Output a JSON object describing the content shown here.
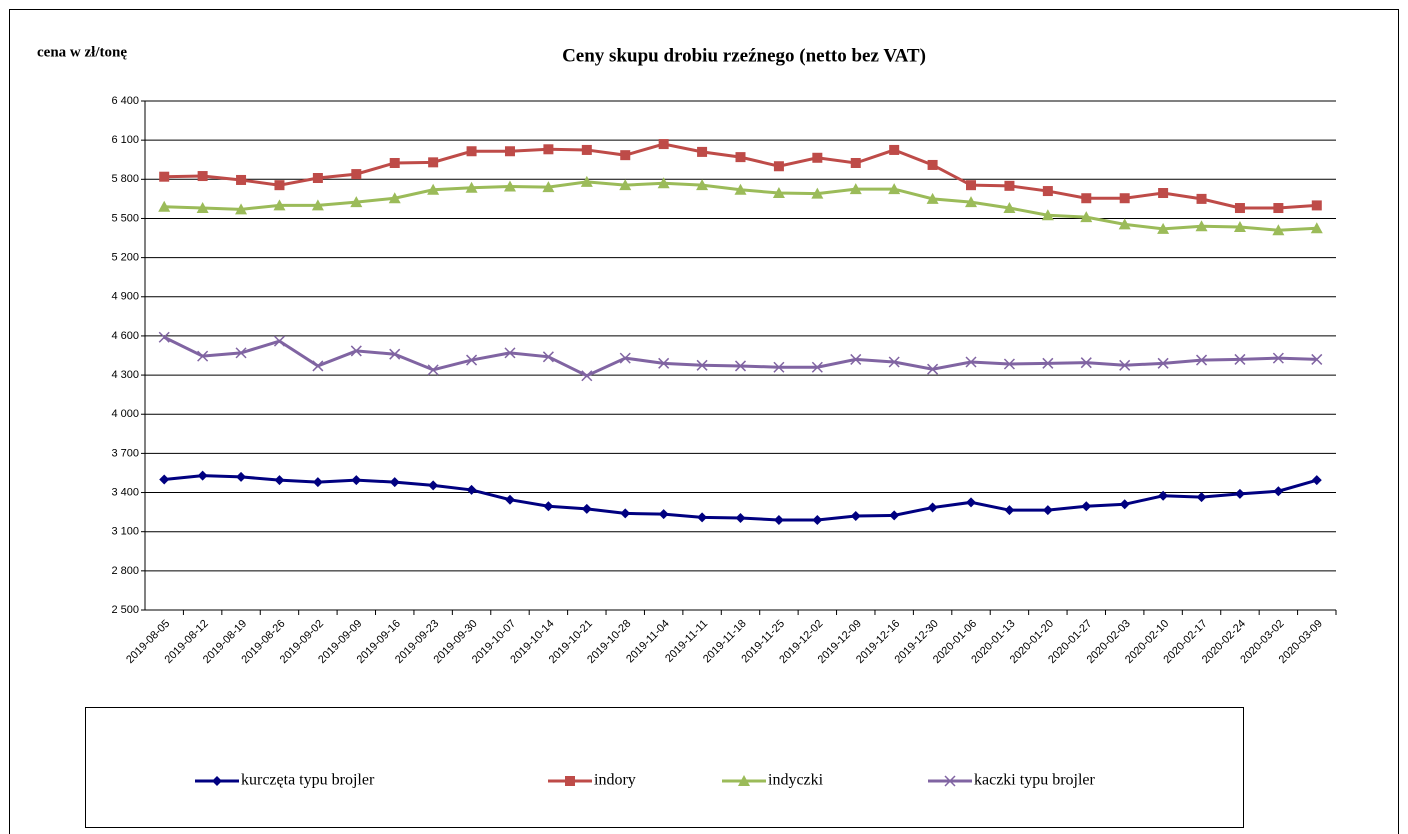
{
  "chart_data": {
    "type": "line",
    "title": "Ceny skupu drobiu rzeźnego (netto bez VAT)",
    "y_label": "cena w zł/tonę",
    "categories": [
      "2019-08-05",
      "2019-08-12",
      "2019-08-19",
      "2019-08-26",
      "2019-09-02",
      "2019-09-09",
      "2019-09-16",
      "2019-09-23",
      "2019-09-30",
      "2019-10-07",
      "2019-10-14",
      "2019-10-21",
      "2019-10-28",
      "2019-11-04",
      "2019-11-11",
      "2019-11-18",
      "2019-11-25",
      "2019-12-02",
      "2019-12-09",
      "2019-12-16",
      "2019-12-30",
      "2020-01-06",
      "2020-01-13",
      "2020-01-20",
      "2020-01-27",
      "2020-02-03",
      "2020-02-10",
      "2020-02-17",
      "2020-02-24",
      "2020-03-02",
      "2020-03-09"
    ],
    "series": [
      {
        "name": "kurczęta typu brojler",
        "color": "#000080",
        "marker": "diamond",
        "values": [
          3500,
          3530,
          3520,
          3495,
          3480,
          3495,
          3480,
          3455,
          3420,
          3345,
          3295,
          3275,
          3240,
          3235,
          3210,
          3205,
          3190,
          3190,
          3220,
          3225,
          3285,
          3325,
          3265,
          3265,
          3295,
          3310,
          3375,
          3365,
          3390,
          3410,
          3495
        ]
      },
      {
        "name": "indory",
        "color": "#be4b48",
        "marker": "square",
        "values": [
          5820,
          5825,
          5795,
          5755,
          5810,
          5840,
          5925,
          5930,
          6015,
          6015,
          6030,
          6025,
          5985,
          6070,
          6010,
          5970,
          5900,
          5965,
          5925,
          6025,
          5910,
          5755,
          5750,
          5710,
          5655,
          5655,
          5695,
          5650,
          5580,
          5580,
          5600
        ]
      },
      {
        "name": "indyczki",
        "color": "#9bbb59",
        "marker": "triangle",
        "values": [
          5590,
          5580,
          5570,
          5600,
          5600,
          5625,
          5655,
          5720,
          5735,
          5745,
          5740,
          5780,
          5755,
          5770,
          5755,
          5720,
          5695,
          5690,
          5725,
          5725,
          5650,
          5625,
          5580,
          5525,
          5510,
          5455,
          5420,
          5440,
          5435,
          5410,
          5425
        ]
      },
      {
        "name": "kaczki typu brojler",
        "color": "#8064a2",
        "marker": "x",
        "values": [
          4590,
          4445,
          4470,
          4560,
          4370,
          4485,
          4460,
          4340,
          4415,
          4470,
          4440,
          4295,
          4430,
          4390,
          4375,
          4370,
          4360,
          4360,
          4420,
          4400,
          4345,
          4400,
          4385,
          4390,
          4395,
          4375,
          4390,
          4415,
          4420,
          4430,
          4420
        ]
      }
    ],
    "ylim": [
      2500,
      6400
    ],
    "yticks": [
      {
        "value": 2500,
        "label": "2 500"
      },
      {
        "value": 2800,
        "label": "2 800"
      },
      {
        "value": 3100,
        "label": "3 100"
      },
      {
        "value": 3400,
        "label": "3 400"
      },
      {
        "value": 3700,
        "label": "3 700"
      },
      {
        "value": 4000,
        "label": "4 000"
      },
      {
        "value": 4300,
        "label": "4 300"
      },
      {
        "value": 4600,
        "label": "4 600"
      },
      {
        "value": 4900,
        "label": "4 900"
      },
      {
        "value": 5200,
        "label": "5 200"
      },
      {
        "value": 5500,
        "label": "5 500"
      },
      {
        "value": 5800,
        "label": "5 800"
      },
      {
        "value": 6100,
        "label": "6 100"
      },
      {
        "value": 6400,
        "label": "6 400"
      }
    ],
    "grid": true
  }
}
